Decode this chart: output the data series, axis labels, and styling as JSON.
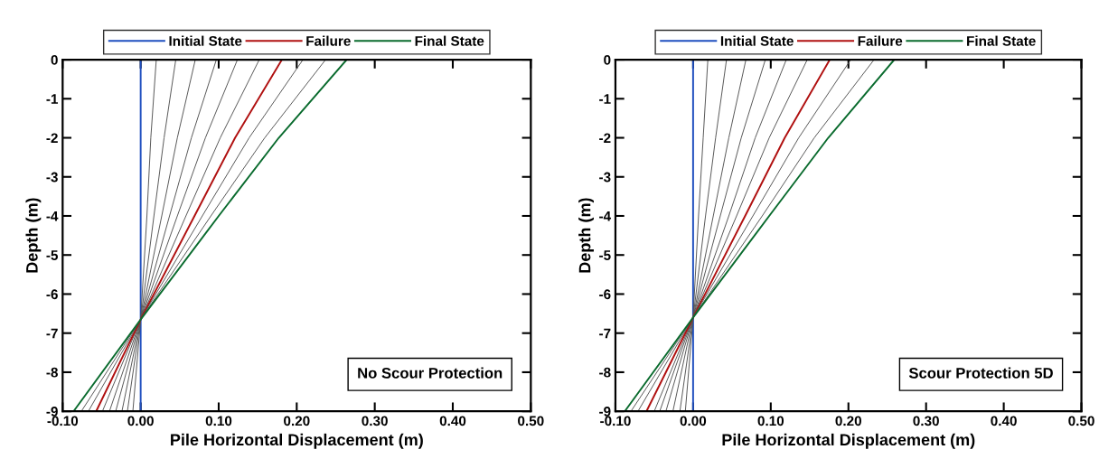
{
  "chart_data": [
    {
      "type": "line",
      "xlabel": "Pile Horizontal Displacement (m)",
      "ylabel": "Depth (m)",
      "legend": "top",
      "grid": false,
      "marker": "none",
      "line_style": "solid",
      "xlim": [
        -0.1,
        0.5
      ],
      "xticks": [
        {
          "value": -0.1,
          "label": "-0.10"
        },
        {
          "value": 0.0,
          "label": "0.00"
        },
        {
          "value": 0.1,
          "label": "0.10"
        },
        {
          "value": 0.2,
          "label": "0.20"
        },
        {
          "value": 0.3,
          "label": "0.30"
        },
        {
          "value": 0.4,
          "label": "0.40"
        },
        {
          "value": 0.5,
          "label": "0.50"
        }
      ],
      "ylim": [
        -9,
        0
      ],
      "yticks": [
        0,
        -1,
        -2,
        -3,
        -4,
        -5,
        -6,
        -7,
        -8,
        -9
      ],
      "annotations": [
        "No Scour Protection"
      ],
      "series": [
        {
          "name": "Initial State",
          "color": "#1f4fbf",
          "x": [
            0,
            0,
            0,
            0,
            0
          ],
          "values": [
            0,
            -2,
            -4,
            -6.65,
            -9
          ]
        },
        {
          "color": "#555555",
          "x": [
            0.02,
            0.013,
            0.008,
            0,
            -0.01
          ],
          "values": [
            0,
            -2,
            -4,
            -6.65,
            -9
          ]
        },
        {
          "color": "#555555",
          "x": [
            0.045,
            0.03,
            0.017,
            0,
            -0.017
          ],
          "values": [
            0,
            -2,
            -4,
            -6.65,
            -9
          ]
        },
        {
          "color": "#555555",
          "x": [
            0.07,
            0.047,
            0.027,
            0,
            -0.024
          ],
          "values": [
            0,
            -2,
            -4,
            -6.65,
            -9
          ]
        },
        {
          "color": "#555555",
          "x": [
            0.097,
            0.065,
            0.037,
            0,
            -0.032
          ],
          "values": [
            0,
            -2,
            -4,
            -6.65,
            -9
          ]
        },
        {
          "color": "#555555",
          "x": [
            0.124,
            0.083,
            0.047,
            0,
            -0.04
          ],
          "values": [
            0,
            -2,
            -4,
            -6.65,
            -9
          ]
        },
        {
          "color": "#555555",
          "x": [
            0.152,
            0.102,
            0.058,
            0,
            -0.049
          ],
          "values": [
            0,
            -2,
            -4,
            -6.65,
            -9
          ]
        },
        {
          "name": "Failure",
          "color": "#b01010",
          "x": [
            0.181,
            0.121,
            0.069,
            0,
            -0.057
          ],
          "values": [
            0,
            -2,
            -4,
            -6.65,
            -9
          ]
        },
        {
          "color": "#555555",
          "x": [
            0.208,
            0.139,
            0.079,
            0,
            -0.067
          ],
          "values": [
            0,
            -2,
            -4,
            -6.65,
            -9
          ]
        },
        {
          "color": "#555555",
          "x": [
            0.237,
            0.159,
            0.09,
            0,
            -0.076
          ],
          "values": [
            0,
            -2,
            -4,
            -6.65,
            -9
          ]
        },
        {
          "name": "Final State",
          "color": "#0a6b2e",
          "x": [
            0.264,
            0.177,
            0.1,
            0,
            -0.086
          ],
          "values": [
            0,
            -2,
            -4,
            -6.65,
            -9
          ]
        }
      ]
    },
    {
      "type": "line",
      "xlabel": "Pile Horizontal Displacement (m)",
      "ylabel": "Depth (m)",
      "legend": "top",
      "grid": false,
      "marker": "none",
      "line_style": "solid",
      "xlim": [
        -0.1,
        0.5
      ],
      "xticks": [
        {
          "value": -0.1,
          "label": "-0.10"
        },
        {
          "value": 0.0,
          "label": "0.00"
        },
        {
          "value": 0.1,
          "label": "0.10"
        },
        {
          "value": 0.2,
          "label": "0.20"
        },
        {
          "value": 0.3,
          "label": "0.30"
        },
        {
          "value": 0.4,
          "label": "0.40"
        },
        {
          "value": 0.5,
          "label": "0.50"
        }
      ],
      "ylim": [
        -9,
        0
      ],
      "yticks": [
        0,
        -1,
        -2,
        -3,
        -4,
        -5,
        -6,
        -7,
        -8,
        -9
      ],
      "annotations": [
        "Scour Protection 5D"
      ],
      "series": [
        {
          "name": "Initial State",
          "color": "#1f4fbf",
          "x": [
            0,
            0,
            0,
            0,
            0
          ],
          "values": [
            0,
            -2,
            -4,
            -6.6,
            -9
          ]
        },
        {
          "color": "#555555",
          "x": [
            0.019,
            0.013,
            0.007,
            0,
            -0.01
          ],
          "values": [
            0,
            -2,
            -4,
            -6.6,
            -9
          ]
        },
        {
          "color": "#555555",
          "x": [
            0.043,
            0.029,
            0.016,
            0,
            -0.017
          ],
          "values": [
            0,
            -2,
            -4,
            -6.6,
            -9
          ]
        },
        {
          "color": "#555555",
          "x": [
            0.068,
            0.046,
            0.026,
            0,
            -0.026
          ],
          "values": [
            0,
            -2,
            -4,
            -6.6,
            -9
          ]
        },
        {
          "color": "#555555",
          "x": [
            0.093,
            0.062,
            0.035,
            0,
            -0.035
          ],
          "values": [
            0,
            -2,
            -4,
            -6.6,
            -9
          ]
        },
        {
          "color": "#555555",
          "x": [
            0.12,
            0.08,
            0.046,
            0,
            -0.043
          ],
          "values": [
            0,
            -2,
            -4,
            -6.6,
            -9
          ]
        },
        {
          "color": "#555555",
          "x": [
            0.147,
            0.098,
            0.056,
            0,
            -0.05
          ],
          "values": [
            0,
            -2,
            -4,
            -6.6,
            -9
          ]
        },
        {
          "name": "Failure",
          "color": "#b01010",
          "x": [
            0.176,
            0.118,
            0.067,
            0,
            -0.06
          ],
          "values": [
            0,
            -2,
            -4,
            -6.6,
            -9
          ]
        },
        {
          "color": "#555555",
          "x": [
            0.203,
            0.136,
            0.077,
            0,
            -0.071
          ],
          "values": [
            0,
            -2,
            -4,
            -6.6,
            -9
          ]
        },
        {
          "color": "#555555",
          "x": [
            0.233,
            0.156,
            0.089,
            0,
            -0.08
          ],
          "values": [
            0,
            -2,
            -4,
            -6.6,
            -9
          ]
        },
        {
          "name": "Final State",
          "color": "#0a6b2e",
          "x": [
            0.259,
            0.174,
            0.098,
            0,
            -0.088
          ],
          "values": [
            0,
            -2,
            -4,
            -6.6,
            -9
          ]
        }
      ]
    }
  ]
}
